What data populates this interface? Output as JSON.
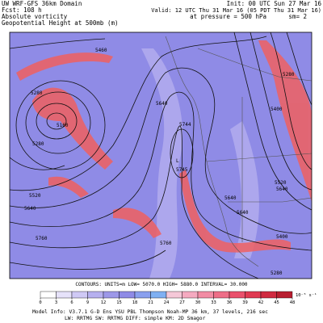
{
  "header": {
    "left": [
      "UW WRF-GFS 36km Domain",
      "Fcst: 108 h",
      "Absolute vorticity",
      "Geopotential Height at 500mb (m)"
    ],
    "right": [
      "Init: 00 UTC Sun 27 Mar 16",
      "Valid: 12 UTC Thu 31 Mar 16 (05 PDT Thu 31 Mar 16)",
      "at pressure = 500 hPa",
      "sm= 2"
    ]
  },
  "contour_labels": [
    "5460",
    "5280",
    "5160",
    "5280",
    "5640",
    "5520",
    "5640",
    "5760",
    "5744",
    "L",
    "5745",
    "5640",
    "5640",
    "5520",
    "5280",
    "5400",
    "5760",
    "5640",
    "5400",
    "5280"
  ],
  "footer": {
    "contours": "CONTOURS: UNITS=m LOW= 5070.0 HIGH= 5880.0 INTERVAL= 30.000",
    "model_info": [
      "Model Info: V3.7.1   G-D Ens YSU PBL  Thompson  Noah-MP  36 km,  37 levels, 216 sec",
      "LW: RRTMG  SW: RRTMG  DIFF: simple  KM: 2D Smagor"
    ]
  },
  "colorbar": {
    "ticks": [
      0,
      3,
      6,
      9,
      12,
      15,
      18,
      21,
      24,
      27,
      30,
      33,
      36,
      39,
      42,
      45,
      48
    ],
    "unit": "10⁻⁵ s⁻¹"
  }
}
